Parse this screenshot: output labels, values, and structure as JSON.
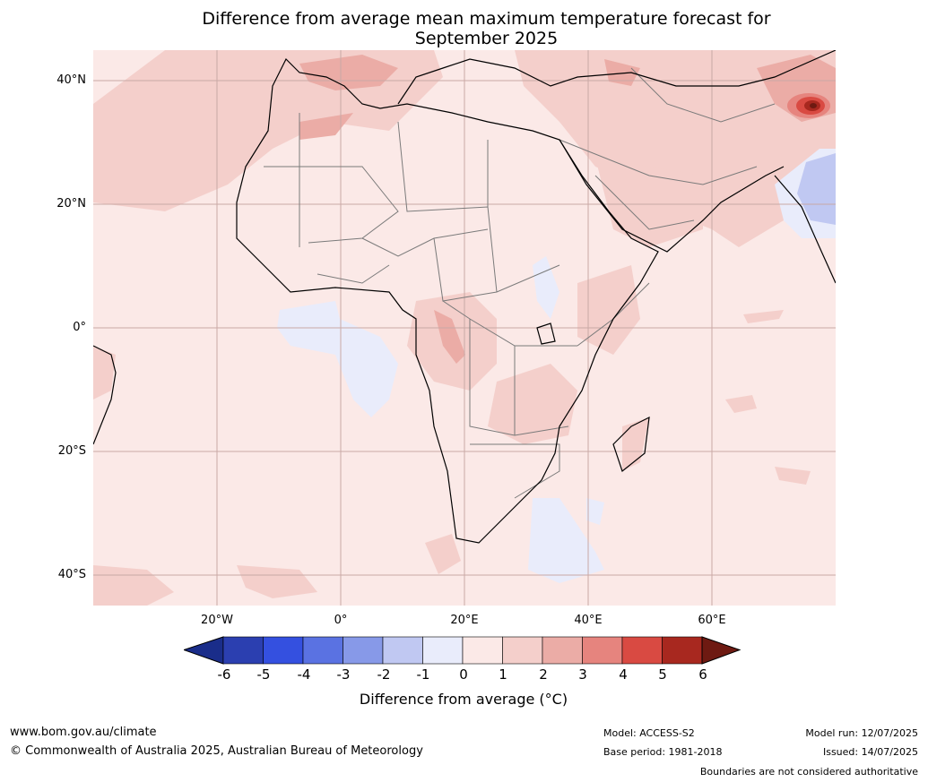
{
  "title_line1": "Difference from average mean maximum temperature forecast for",
  "title_line2": "September 2025",
  "map": {
    "lat_labels": [
      "40°N",
      "20°N",
      "0°",
      "20°S",
      "40°S"
    ],
    "lon_labels": [
      "20°W",
      "0°",
      "20°E",
      "40°E",
      "60°E"
    ],
    "background_color": "#fbe9e7"
  },
  "colorbar": {
    "label": "Difference from average (°C)",
    "ticks": [
      "-6",
      "-5",
      "-4",
      "-3",
      "-2",
      "-1",
      "0",
      "1",
      "2",
      "3",
      "4",
      "5",
      "6"
    ],
    "colors": [
      "#1a2d8a",
      "#2b3fb0",
      "#3450e0",
      "#5a72e2",
      "#8799e8",
      "#c0c8f2",
      "#e9ecfb",
      "#fbe9e7",
      "#f4cfcb",
      "#ebaca6",
      "#e6847e",
      "#d94a42",
      "#a8281f",
      "#6e1a12"
    ]
  },
  "footer": {
    "website": "www.bom.gov.au/climate",
    "copyright": "© Commonwealth of Australia 2025, Australian Bureau of Meteorology",
    "model": "Model: ACCESS-S2",
    "base_period": "Base period: 1981-2018",
    "model_run": "Model run: 12/07/2025",
    "issued": "Issued: 14/07/2025",
    "disclaimer": "Boundaries are not considered authoritative"
  }
}
